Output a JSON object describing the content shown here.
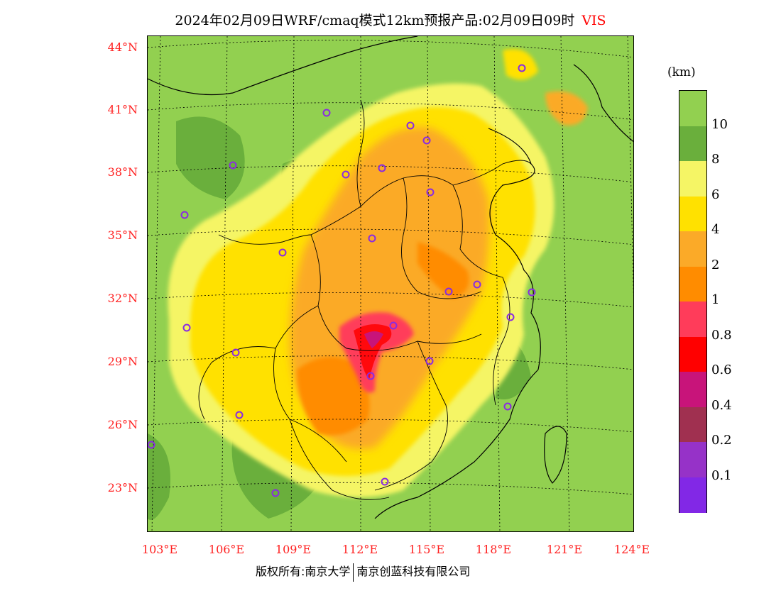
{
  "title": "2024年02月09日WRF/cmaq模式12km预报产品:02月09日09时",
  "variable": "VIS",
  "unit": "(km)",
  "lat_labels": [
    "44°N",
    "41°N",
    "38°N",
    "35°N",
    "32°N",
    "29°N",
    "26°N",
    "23°N"
  ],
  "lon_labels": [
    "103°E",
    "106°E",
    "109°E",
    "112°E",
    "115°E",
    "118°E",
    "121°E",
    "124°E"
  ],
  "legend": {
    "labels": [
      "10",
      "8",
      "6",
      "4",
      "2",
      "1",
      "0.8",
      "0.6",
      "0.4",
      "0.2",
      "0.1"
    ],
    "colors": [
      "#92d050",
      "#6aaf3c",
      "#f5f565",
      "#ffe100",
      "#fbaa28",
      "#ff8c00",
      "#ff3c5a",
      "#ff0000",
      "#c8147a",
      "#a03050",
      "#9632c8",
      "#8228e6"
    ]
  },
  "copyright": {
    "left": "版权所有:南京大学",
    "right": "南京创蓝科技有限公司"
  }
}
